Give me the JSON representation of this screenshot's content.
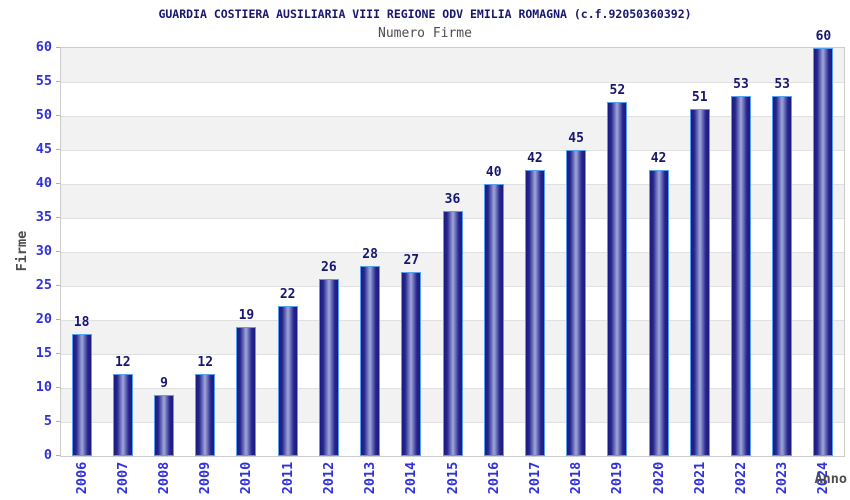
{
  "chart_data": {
    "type": "bar",
    "title": "GUARDIA COSTIERA AUSILIARIA VIII REGIONE ODV EMILIA ROMAGNA (c.f.92050360392)",
    "subtitle": "Numero Firme",
    "xlabel": "Anno",
    "ylabel": "Firme",
    "categories": [
      "2006",
      "2007",
      "2008",
      "2009",
      "2010",
      "2011",
      "2012",
      "2013",
      "2014",
      "2015",
      "2016",
      "2017",
      "2018",
      "2019",
      "2020",
      "2021",
      "2022",
      "2023",
      "2024"
    ],
    "values": [
      18,
      12,
      9,
      12,
      19,
      22,
      26,
      28,
      27,
      36,
      40,
      42,
      45,
      52,
      42,
      51,
      53,
      53,
      60
    ],
    "ylim": [
      0,
      60
    ],
    "ytick_step": 5,
    "yticks": [
      0,
      5,
      10,
      15,
      20,
      25,
      30,
      35,
      40,
      45,
      50,
      55,
      60
    ],
    "grid": true,
    "legend": false,
    "band_alternating": true,
    "colors": {
      "title": "#16166e",
      "subtitle": "#4d4d4d",
      "axis_title": "#4d4d4d",
      "tick_label": "#3030dd",
      "value_label": "#16166e",
      "bar_edge": "#1a1a7e",
      "bar_mid": "#26268f",
      "bar_center": "#a0a7d9",
      "bar_border": "#57a0f0",
      "band": "#f2f2f2",
      "gridline": "#e0e0e0",
      "tick_mark": "#b0b0b0",
      "plot_border": "#cccccc"
    }
  }
}
